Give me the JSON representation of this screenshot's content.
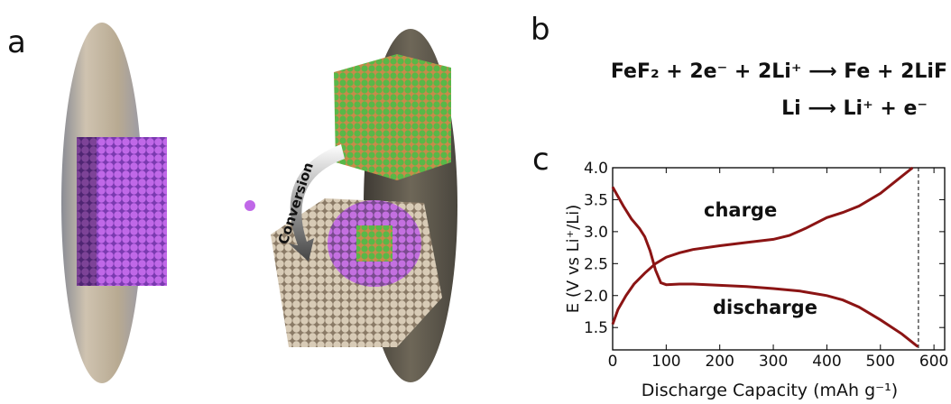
{
  "panel_labels": [
    "a",
    "b",
    "c"
  ],
  "equations": [
    "FeF₂ + 2e⁻ + 2Li⁺ ⟶ Fe + 2LiF",
    "Li ⟶ Li⁺ + e⁻"
  ],
  "schematic": {
    "arrow_label": "Conversion"
  },
  "chart_data": {
    "type": "line",
    "xlabel": "Discharge Capacity (mAh g⁻¹)",
    "ylabel": "E (V vs Li⁺/Li)",
    "xlim": [
      0,
      620
    ],
    "ylim": [
      1.15,
      4.0
    ],
    "xticks": [
      0,
      100,
      200,
      300,
      400,
      500,
      600
    ],
    "yticks": [
      {
        "value": 1.5,
        "label": "1.5"
      },
      {
        "value": 2.0,
        "label": "2.0"
      },
      {
        "value": 2.5,
        "label": "2.5"
      },
      {
        "value": 3.0,
        "label": "3.0"
      },
      {
        "value": 3.5,
        "label": "3.5"
      },
      {
        "value": 4.0,
        "label": "4.0"
      }
    ],
    "reference_x": 571,
    "series": [
      {
        "name": "charge",
        "color": "#8b1414",
        "x": [
          0,
          10,
          25,
          40,
          60,
          80,
          100,
          125,
          150,
          200,
          250,
          300,
          330,
          360,
          400,
          430,
          460,
          500,
          530,
          560
        ],
        "values": [
          1.55,
          1.78,
          2.0,
          2.18,
          2.35,
          2.5,
          2.6,
          2.67,
          2.72,
          2.78,
          2.83,
          2.88,
          2.94,
          3.05,
          3.22,
          3.3,
          3.4,
          3.6,
          3.8,
          4.0
        ]
      },
      {
        "name": "discharge",
        "color": "#8b1414",
        "x": [
          0,
          10,
          20,
          35,
          50,
          60,
          70,
          80,
          90,
          100,
          125,
          150,
          200,
          250,
          300,
          350,
          400,
          430,
          460,
          500,
          540,
          570
        ],
        "values": [
          3.7,
          3.55,
          3.4,
          3.2,
          3.05,
          2.92,
          2.7,
          2.4,
          2.2,
          2.17,
          2.18,
          2.18,
          2.16,
          2.14,
          2.11,
          2.07,
          2.0,
          1.93,
          1.82,
          1.62,
          1.4,
          1.2
        ]
      }
    ]
  }
}
